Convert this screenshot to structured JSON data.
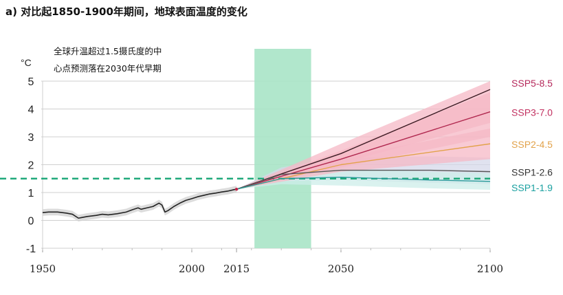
{
  "chart_data": {
    "type": "line",
    "title": "a) 对比起1850-1900年期间，地球表面温度的变化",
    "annotation": [
      "全球升温超过1.5摄氏度的中",
      "心点预测落在2030年代早期"
    ],
    "y_unit": "°C",
    "xlim": [
      1950,
      2100
    ],
    "ylim": [
      -1,
      5
    ],
    "x_ticks": [
      "1950",
      "2000",
      "2015",
      "2050",
      "2100"
    ],
    "x_tick_values": [
      1950,
      2000,
      2015,
      2050,
      2100
    ],
    "y_ticks": [
      "5",
      "4",
      "3",
      "2",
      "1",
      "0",
      "-1"
    ],
    "y_tick_values": [
      5,
      4,
      3,
      2,
      1,
      0,
      -1
    ],
    "grid": true,
    "threshold": {
      "value": 1.5,
      "color": "#1fa87a"
    },
    "highlight_period": {
      "x_start": 2021,
      "x_end": 2040,
      "color": "#a8e4c6"
    },
    "historical": {
      "color": "#222222",
      "band_color": "#d0d0d0",
      "x": [
        1950,
        1952,
        1955,
        1958,
        1960,
        1962,
        1963,
        1965,
        1968,
        1970,
        1972,
        1975,
        1978,
        1980,
        1982,
        1983,
        1985,
        1987,
        1989,
        1990,
        1991,
        1992,
        1994,
        1996,
        1998,
        2000,
        2002,
        2004,
        2006,
        2008,
        2010,
        2012,
        2014,
        2015
      ],
      "y": [
        0.28,
        0.3,
        0.3,
        0.26,
        0.22,
        0.08,
        0.1,
        0.14,
        0.18,
        0.22,
        0.2,
        0.24,
        0.3,
        0.38,
        0.45,
        0.4,
        0.45,
        0.5,
        0.62,
        0.55,
        0.3,
        0.35,
        0.5,
        0.62,
        0.72,
        0.78,
        0.85,
        0.9,
        0.95,
        0.98,
        1.02,
        1.05,
        1.1,
        1.12
      ],
      "band_halfwidth": 0.12
    },
    "series": [
      {
        "name": "SSP5-8.5",
        "color": "#b5275a",
        "line_color": "#3a1a22",
        "x": [
          2015,
          2050,
          2100
        ],
        "y": [
          1.12,
          2.4,
          4.7
        ],
        "lower": [
          1.12,
          2.05,
          3.5
        ],
        "upper": [
          1.12,
          2.75,
          5.0
        ],
        "band_color": "#f6b8c6"
      },
      {
        "name": "SSP3-7.0",
        "color": "#c23060",
        "line_color": "#b0284f",
        "x": [
          2015,
          2050,
          2100
        ],
        "y": [
          1.12,
          2.2,
          3.9
        ],
        "lower": [
          1.12,
          1.9,
          3.0
        ],
        "upper": [
          1.12,
          2.5,
          4.6
        ],
        "band_color": "#f6b8c6"
      },
      {
        "name": "SSP2-4.5",
        "color": "#e2a24a",
        "line_color": "#e2a24a",
        "x": [
          2015,
          2050,
          2100
        ],
        "y": [
          1.12,
          2.0,
          2.75
        ],
        "lower": [
          1.12,
          1.75,
          2.2
        ],
        "upper": [
          1.12,
          2.25,
          3.3
        ],
        "band_color": "#f6b8c6"
      },
      {
        "name": "SSP1-2.6",
        "color": "#333333",
        "line_color": "#555555",
        "x": [
          2015,
          2030,
          2050,
          2080,
          2100
        ],
        "y": [
          1.12,
          1.65,
          1.8,
          1.8,
          1.75
        ],
        "lower": [
          1.12,
          1.4,
          1.45,
          1.35,
          1.3
        ],
        "upper": [
          1.12,
          1.9,
          2.25,
          2.3,
          2.25
        ],
        "band_color": "#d5d8ea"
      },
      {
        "name": "SSP1-1.9",
        "color": "#1aa0a0",
        "line_color": "#2a9a9a",
        "x": [
          2015,
          2030,
          2050,
          2080,
          2100
        ],
        "y": [
          1.12,
          1.5,
          1.55,
          1.45,
          1.4
        ],
        "lower": [
          1.12,
          1.3,
          1.25,
          1.15,
          1.1
        ],
        "upper": [
          1.12,
          1.7,
          1.85,
          1.75,
          1.7
        ],
        "band_color": "#cdeee9"
      }
    ]
  }
}
